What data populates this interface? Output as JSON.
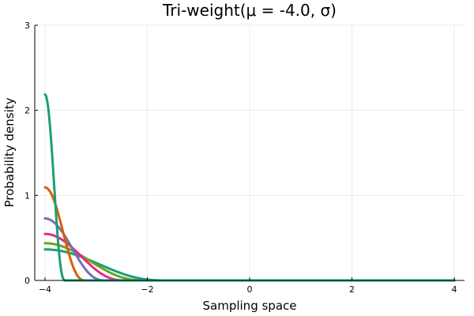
{
  "chart_data": {
    "type": "line",
    "title": "Tri-weight(μ = -4.0, σ)",
    "xlabel": "Sampling space",
    "ylabel": "Probability density",
    "xlim": [
      -4.2,
      4.2
    ],
    "ylim": [
      0,
      3
    ],
    "xticks": [
      -4,
      -2,
      0,
      2,
      4
    ],
    "xtick_labels": [
      "−4",
      "−2",
      "0",
      "2",
      "4"
    ],
    "yticks": [
      0,
      1,
      2,
      3
    ],
    "ytick_labels": [
      "0",
      "1",
      "2",
      "3"
    ],
    "grid": true,
    "legend": "none",
    "x_range": [
      -4.0,
      4.0
    ],
    "series": [
      {
        "color": "#1b9e77",
        "mu": -4.0,
        "half_width": 0.4,
        "peak": 2.1875
      },
      {
        "color": "#d95f02",
        "mu": -4.0,
        "half_width": 0.8,
        "peak": 1.09375
      },
      {
        "color": "#7570b3",
        "mu": -4.0,
        "half_width": 1.2,
        "peak": 0.729
      },
      {
        "color": "#e7298a",
        "mu": -4.0,
        "half_width": 1.6,
        "peak": 0.547
      },
      {
        "color": "#66a61e",
        "mu": -4.0,
        "half_width": 2.0,
        "peak": 0.4375
      },
      {
        "color": "#1b9e77",
        "mu": -4.0,
        "half_width": 2.4,
        "peak": 0.365
      }
    ]
  }
}
